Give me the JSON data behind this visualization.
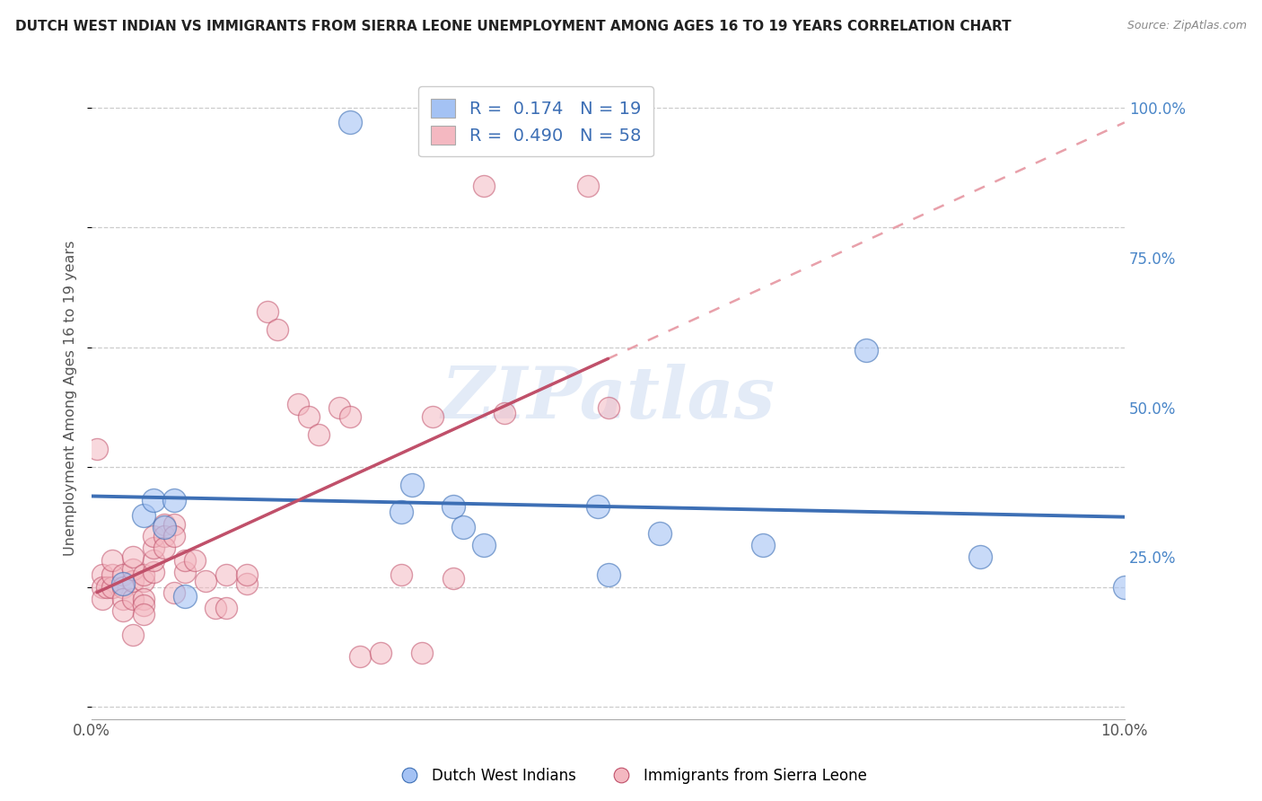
{
  "title": "DUTCH WEST INDIAN VS IMMIGRANTS FROM SIERRA LEONE UNEMPLOYMENT AMONG AGES 16 TO 19 YEARS CORRELATION CHART",
  "source": "Source: ZipAtlas.com",
  "ylabel": "Unemployment Among Ages 16 to 19 years",
  "xlim": [
    0.0,
    0.1
  ],
  "ylim": [
    -0.02,
    1.05
  ],
  "xticks": [
    0.0,
    0.02,
    0.04,
    0.06,
    0.08,
    0.1
  ],
  "yticks_right": [
    0.0,
    0.25,
    0.5,
    0.75,
    1.0
  ],
  "ytick_labels_right": [
    "",
    "25.0%",
    "50.0%",
    "75.0%",
    "100.0%"
  ],
  "blue_color": "#a4c2f4",
  "pink_color": "#f4b8c1",
  "blue_line_color": "#3d6fb5",
  "pink_line_color": "#c0506a",
  "pink_dash_color": "#e8a0aa",
  "R_blue": 0.174,
  "N_blue": 19,
  "R_pink": 0.49,
  "N_pink": 58,
  "legend_label_blue": "Dutch West Indians",
  "legend_label_pink": "Immigrants from Sierra Leone",
  "watermark": "ZIPatlas",
  "blue_scatter_x": [
    0.025,
    0.003,
    0.005,
    0.006,
    0.007,
    0.008,
    0.009,
    0.031,
    0.03,
    0.035,
    0.036,
    0.038,
    0.049,
    0.05,
    0.055,
    0.065,
    0.075,
    0.086,
    0.1
  ],
  "blue_scatter_y": [
    0.975,
    0.205,
    0.32,
    0.345,
    0.3,
    0.345,
    0.185,
    0.37,
    0.325,
    0.335,
    0.3,
    0.27,
    0.335,
    0.22,
    0.29,
    0.27,
    0.595,
    0.25,
    0.2
  ],
  "pink_scatter_x": [
    0.0005,
    0.001,
    0.001,
    0.001,
    0.0015,
    0.002,
    0.002,
    0.002,
    0.003,
    0.003,
    0.003,
    0.003,
    0.004,
    0.004,
    0.004,
    0.004,
    0.004,
    0.005,
    0.005,
    0.005,
    0.005,
    0.005,
    0.006,
    0.006,
    0.006,
    0.006,
    0.007,
    0.007,
    0.007,
    0.008,
    0.008,
    0.008,
    0.009,
    0.009,
    0.01,
    0.011,
    0.012,
    0.013,
    0.013,
    0.015,
    0.015,
    0.017,
    0.018,
    0.02,
    0.021,
    0.022,
    0.024,
    0.025,
    0.026,
    0.028,
    0.03,
    0.032,
    0.033,
    0.035,
    0.038,
    0.04,
    0.048,
    0.05
  ],
  "pink_scatter_y": [
    0.43,
    0.22,
    0.2,
    0.18,
    0.2,
    0.2,
    0.22,
    0.245,
    0.22,
    0.2,
    0.18,
    0.16,
    0.12,
    0.18,
    0.21,
    0.23,
    0.25,
    0.21,
    0.22,
    0.18,
    0.17,
    0.155,
    0.225,
    0.245,
    0.265,
    0.285,
    0.305,
    0.285,
    0.265,
    0.305,
    0.285,
    0.19,
    0.225,
    0.245,
    0.245,
    0.21,
    0.165,
    0.165,
    0.22,
    0.205,
    0.22,
    0.66,
    0.63,
    0.505,
    0.485,
    0.455,
    0.5,
    0.485,
    0.085,
    0.09,
    0.22,
    0.09,
    0.485,
    0.215,
    0.87,
    0.49,
    0.87,
    0.5
  ]
}
